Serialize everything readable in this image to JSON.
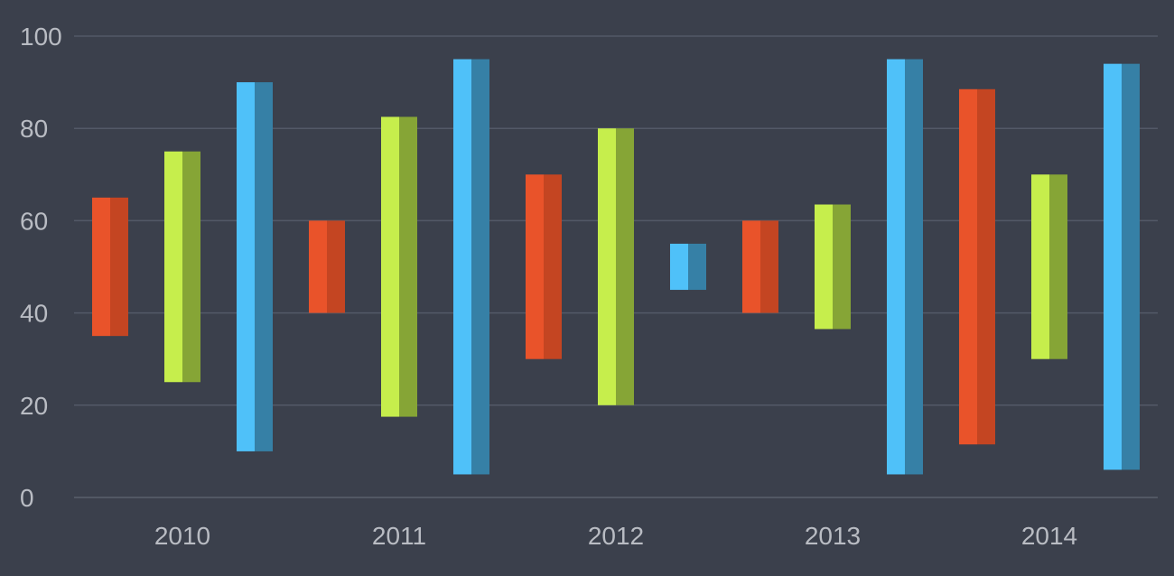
{
  "chart_data": {
    "type": "bar",
    "subtype": "floating-range",
    "categories": [
      "2010",
      "2011",
      "2012",
      "2013",
      "2014"
    ],
    "ylim": [
      0,
      100
    ],
    "yticks": [
      "0",
      "20",
      "40",
      "60",
      "80",
      "100"
    ],
    "grid": true,
    "colors": {
      "background": "#3b404c",
      "grid": "#535967",
      "text": "#b9bcc3",
      "orange": "#e9532a",
      "orange_shade": "#c44522",
      "green": "#c6ee4c",
      "green_shade": "#86a536",
      "blue": "#4fc1f9",
      "blue_shade": "#3680a6"
    },
    "bars": [
      {
        "category": "2010",
        "color": "orange",
        "low": 35,
        "high": 65
      },
      {
        "category": "2010",
        "color": "green",
        "low": 25,
        "high": 75
      },
      {
        "category": "2010",
        "color": "blue",
        "low": 10,
        "high": 90
      },
      {
        "category": "2011",
        "color": "orange",
        "low": 40,
        "high": 60
      },
      {
        "category": "2011",
        "color": "green",
        "low": 17.5,
        "high": 82.5
      },
      {
        "category": "2011",
        "color": "blue",
        "low": 5,
        "high": 95
      },
      {
        "category": "2012",
        "color": "orange",
        "low": 30,
        "high": 70
      },
      {
        "category": "2012",
        "color": "green",
        "low": 20,
        "high": 80
      },
      {
        "category": "2012",
        "color": "blue",
        "low": 45,
        "high": 55
      },
      {
        "category": "2013",
        "color": "orange",
        "low": 40,
        "high": 60
      },
      {
        "category": "2013",
        "color": "green",
        "low": 36.5,
        "high": 63.5
      },
      {
        "category": "2013",
        "color": "blue",
        "low": 5,
        "high": 95
      },
      {
        "category": "2014",
        "color": "orange",
        "low": 11.5,
        "high": 88.5
      },
      {
        "category": "2014",
        "color": "green",
        "low": 30,
        "high": 70
      },
      {
        "category": "2014",
        "color": "blue",
        "low": 6,
        "high": 94
      }
    ]
  }
}
